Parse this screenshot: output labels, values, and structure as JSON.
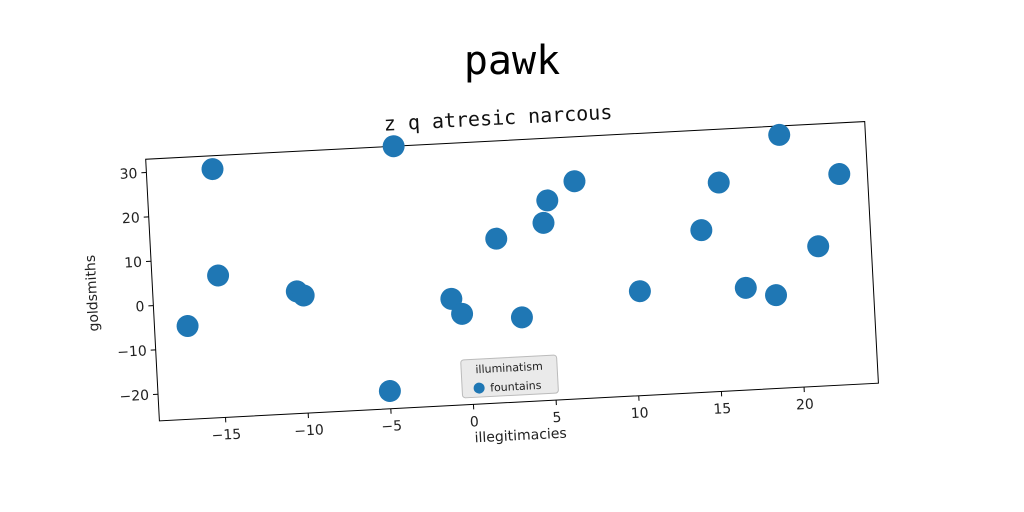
{
  "figure_title": "pawk",
  "chart_data": {
    "type": "scatter",
    "title": "z q atresic narcous",
    "xlabel": "illegitimacies",
    "ylabel": "goldsmiths",
    "xlim": [
      -19,
      24.5
    ],
    "ylim": [
      -26,
      33
    ],
    "xticks": [
      -15,
      -10,
      -5,
      0,
      5,
      10,
      15,
      20
    ],
    "yticks": [
      -20,
      -10,
      0,
      10,
      20,
      30
    ],
    "xtick_labels": [
      "−15",
      "−10",
      "−5",
      "0",
      "5",
      "10",
      "15",
      "20"
    ],
    "ytick_labels": [
      "−20",
      "−10",
      "0",
      "10",
      "20",
      "30"
    ],
    "grid": false,
    "legend": {
      "title": "illuminatism",
      "placement": "lower-center"
    },
    "series": [
      {
        "name": "fountains",
        "color": "#1f77b4",
        "points": [
          {
            "x": -15,
            "y": 30
          },
          {
            "x": -17,
            "y": -5
          },
          {
            "x": -15,
            "y": 6
          },
          {
            "x": -10.3,
            "y": 1.5
          },
          {
            "x": -9.9,
            "y": 0.5
          },
          {
            "x": -4,
            "y": 33
          },
          {
            "x": -5,
            "y": -22
          },
          {
            "x": -1,
            "y": -2
          },
          {
            "x": -0.4,
            "y": -5.5
          },
          {
            "x": 1.9,
            "y": 11
          },
          {
            "x": 3.2,
            "y": -7
          },
          {
            "x": 4.8,
            "y": 14
          },
          {
            "x": 5.1,
            "y": 19
          },
          {
            "x": 6.8,
            "y": 23
          },
          {
            "x": 10.4,
            "y": -2.5
          },
          {
            "x": 14.3,
            "y": 10.5
          },
          {
            "x": 15.5,
            "y": 21
          },
          {
            "x": 16.8,
            "y": -3
          },
          {
            "x": 18.6,
            "y": -5
          },
          {
            "x": 19.3,
            "y": 31
          },
          {
            "x": 21.3,
            "y": 5.5
          },
          {
            "x": 22.8,
            "y": 21.5
          }
        ]
      }
    ]
  }
}
